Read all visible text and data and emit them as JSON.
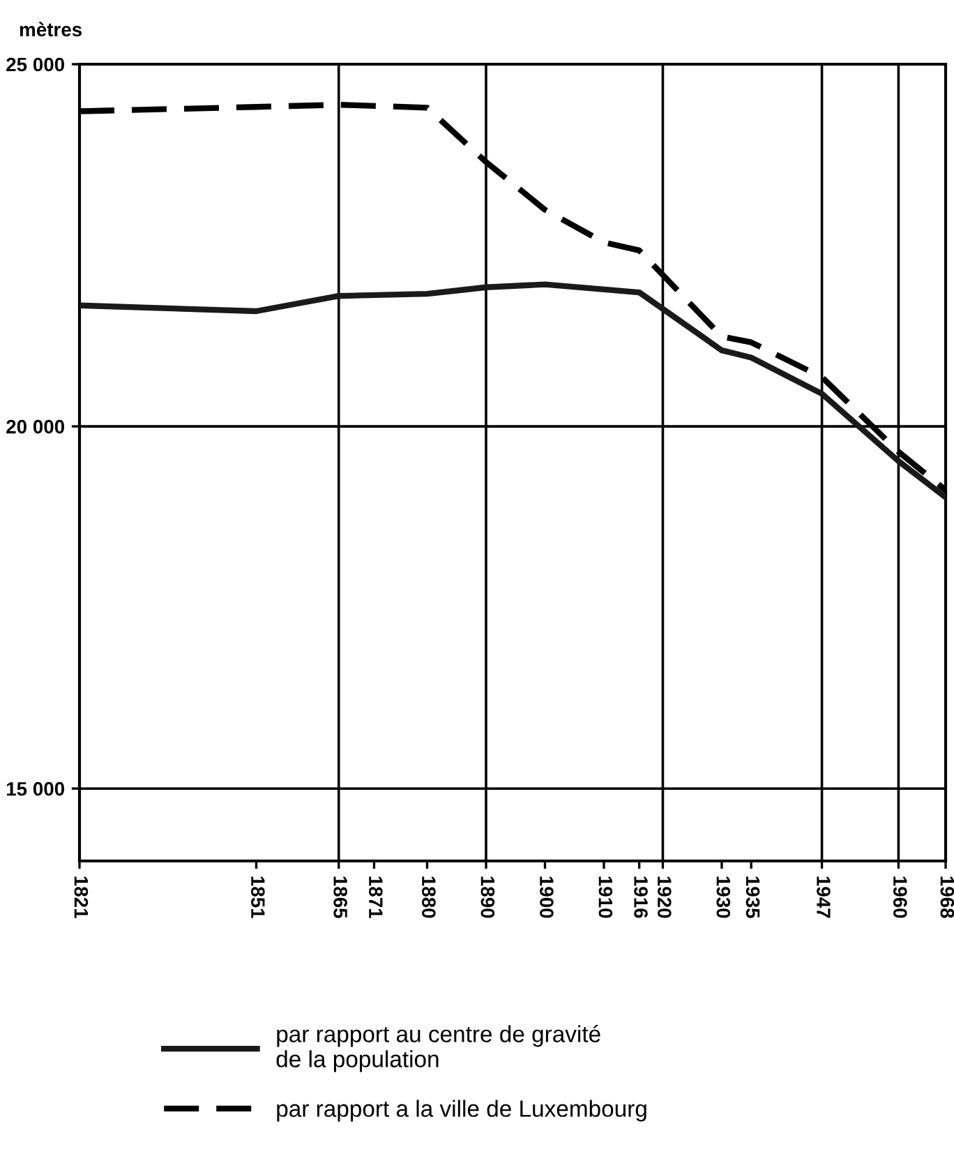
{
  "chart_data": {
    "type": "line",
    "ylabel": "mètres",
    "series": [
      {
        "name": "par rapport au centre de gravité\nde la population",
        "color": "#1a1a1a",
        "line_style": "solid",
        "x": [
          1821,
          1851,
          1865,
          1880,
          1890,
          1900,
          1916,
          1930,
          1935,
          1947,
          1960,
          1968
        ],
        "values": [
          21670,
          21590,
          21800,
          21830,
          21920,
          21960,
          21850,
          21050,
          20950,
          20450,
          19520,
          19020
        ]
      },
      {
        "name": "par rapport a la ville de Luxembourg",
        "color": "#000000",
        "line_style": "dashed",
        "x": [
          1821,
          1851,
          1865,
          1880,
          1890,
          1900,
          1910,
          1916,
          1930,
          1935,
          1947,
          1960,
          1968
        ],
        "values": [
          24350,
          24410,
          24440,
          24400,
          23650,
          22990,
          22540,
          22430,
          21240,
          21160,
          20680,
          19650,
          19120
        ]
      }
    ],
    "xlim": [
      1821,
      1968
    ],
    "xticks": [
      1821,
      1851,
      1865,
      1871,
      1880,
      1890,
      1900,
      1910,
      1916,
      1920,
      1930,
      1935,
      1947,
      1960,
      1968
    ],
    "ylim": [
      14000,
      25000
    ],
    "yticks": [
      {
        "value": 15000,
        "label": "15 000"
      },
      {
        "value": 20000,
        "label": "20 000"
      },
      {
        "value": 25000,
        "label": "25 000"
      }
    ],
    "grid": "y",
    "ref_lines": [
      {
        "axis": "x",
        "value": 1865,
        "label": null
      },
      {
        "axis": "x",
        "value": 1890,
        "label": null
      },
      {
        "axis": "x",
        "value": 1920,
        "label": null
      },
      {
        "axis": "x",
        "value": 1947,
        "label": null
      },
      {
        "axis": "x",
        "value": 1960,
        "label": null
      }
    ],
    "legend": "bottom",
    "marker": "none"
  }
}
